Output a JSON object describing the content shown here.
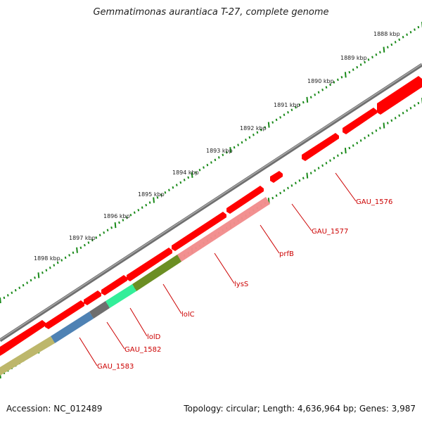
{
  "title": "Gemmatimonas aurantiaca T-27, complete genome",
  "accession": "Accession: NC_012489",
  "summary": "Topology: circular; Length: 4,636,964 bp; Genes: 3,987",
  "colors": {
    "backbone": "#8a8a8a",
    "forward_gene": "#ff0000",
    "ticks": "#1a8a1a",
    "label": "#cc0000",
    "tick_label": "#222222"
  },
  "scale_labels": [
    "1888 kbp",
    "1889 kbp",
    "1890 kbp",
    "1891 kbp",
    "1892 kbp",
    "1893 kbp",
    "1894 kbp",
    "1895 kbp",
    "1896 kbp",
    "1897 kbp",
    "1898 kbp"
  ],
  "genes": [
    {
      "label": "GAU_1576",
      "color": "#ff0000"
    },
    {
      "label": "GAU_1577",
      "color": "#ff0000"
    },
    {
      "label": "prfB",
      "color": "#f08080"
    },
    {
      "label": "lysS",
      "color": "#f08080"
    },
    {
      "label": "lolC",
      "color": "#6b8e23"
    },
    {
      "label": "lolD",
      "color": "#33ee99"
    },
    {
      "label": "GAU_1582",
      "color": "#6e6e6e"
    },
    {
      "label": "GAU_1583",
      "color": "#4f82b4"
    },
    {
      "label": "",
      "color": "#bdb76b"
    }
  ]
}
